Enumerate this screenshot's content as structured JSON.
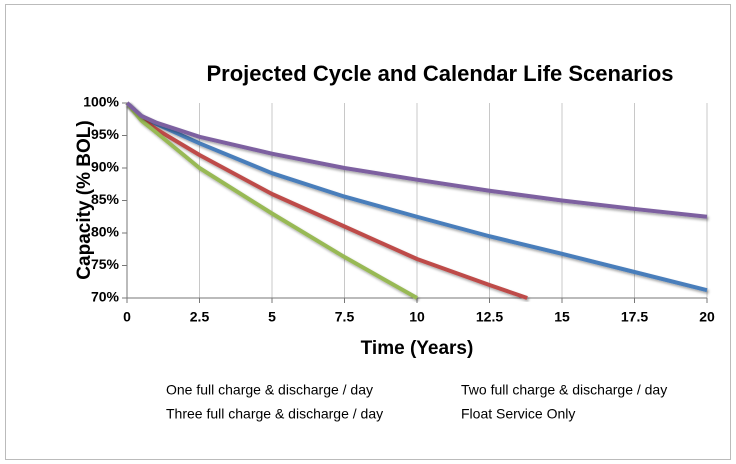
{
  "chart_data": {
    "type": "line",
    "title": "Projected Cycle and Calendar Life Scenarios",
    "xlabel": "Time (Years)",
    "ylabel": "Capacity (% BOL)",
    "xlim": [
      0,
      20
    ],
    "xticks": [
      0,
      2.5,
      5,
      7.5,
      10,
      12.5,
      15,
      17.5,
      20
    ],
    "ylim": [
      70,
      100
    ],
    "yticks": [
      {
        "value": 70,
        "label": "70%"
      },
      {
        "value": 75,
        "label": "75%"
      },
      {
        "value": 80,
        "label": "80%"
      },
      {
        "value": 85,
        "label": "85%"
      },
      {
        "value": 90,
        "label": "90%"
      },
      {
        "value": 95,
        "label": "95%"
      },
      {
        "value": 100,
        "label": "100%"
      }
    ],
    "grid": "x",
    "legend": "bottom",
    "series": [
      {
        "name": "One full charge & discharge / day",
        "color": "#4a7ebb",
        "x": [
          0,
          0.5,
          1,
          2.5,
          5,
          7.5,
          10,
          12.5,
          15,
          17.5,
          20
        ],
        "values": [
          100,
          98,
          96.8,
          93.8,
          89.2,
          85.6,
          82.5,
          79.5,
          76.8,
          74,
          71.2
        ]
      },
      {
        "name": "Two full charge & discharge / day",
        "color": "#be4b48",
        "x": [
          0,
          0.5,
          1,
          2.5,
          5,
          7.5,
          10,
          12.5,
          13.8
        ],
        "values": [
          100,
          97.6,
          96,
          92,
          86,
          81,
          76,
          72,
          70
        ]
      },
      {
        "name": "Three full charge & discharge / day",
        "color": "#98b954",
        "x": [
          0,
          0.5,
          1,
          2.5,
          5,
          7.5,
          10
        ],
        "values": [
          100,
          97.3,
          95.5,
          90,
          83,
          76.3,
          70
        ]
      },
      {
        "name": "Float Service Only",
        "color": "#7d60a0",
        "x": [
          0,
          0.5,
          1,
          2.5,
          5,
          7.5,
          10,
          12.5,
          15,
          17.5,
          20
        ],
        "values": [
          100,
          98,
          97,
          94.8,
          92.2,
          90,
          88.2,
          86.5,
          85,
          83.7,
          82.5
        ]
      }
    ]
  }
}
